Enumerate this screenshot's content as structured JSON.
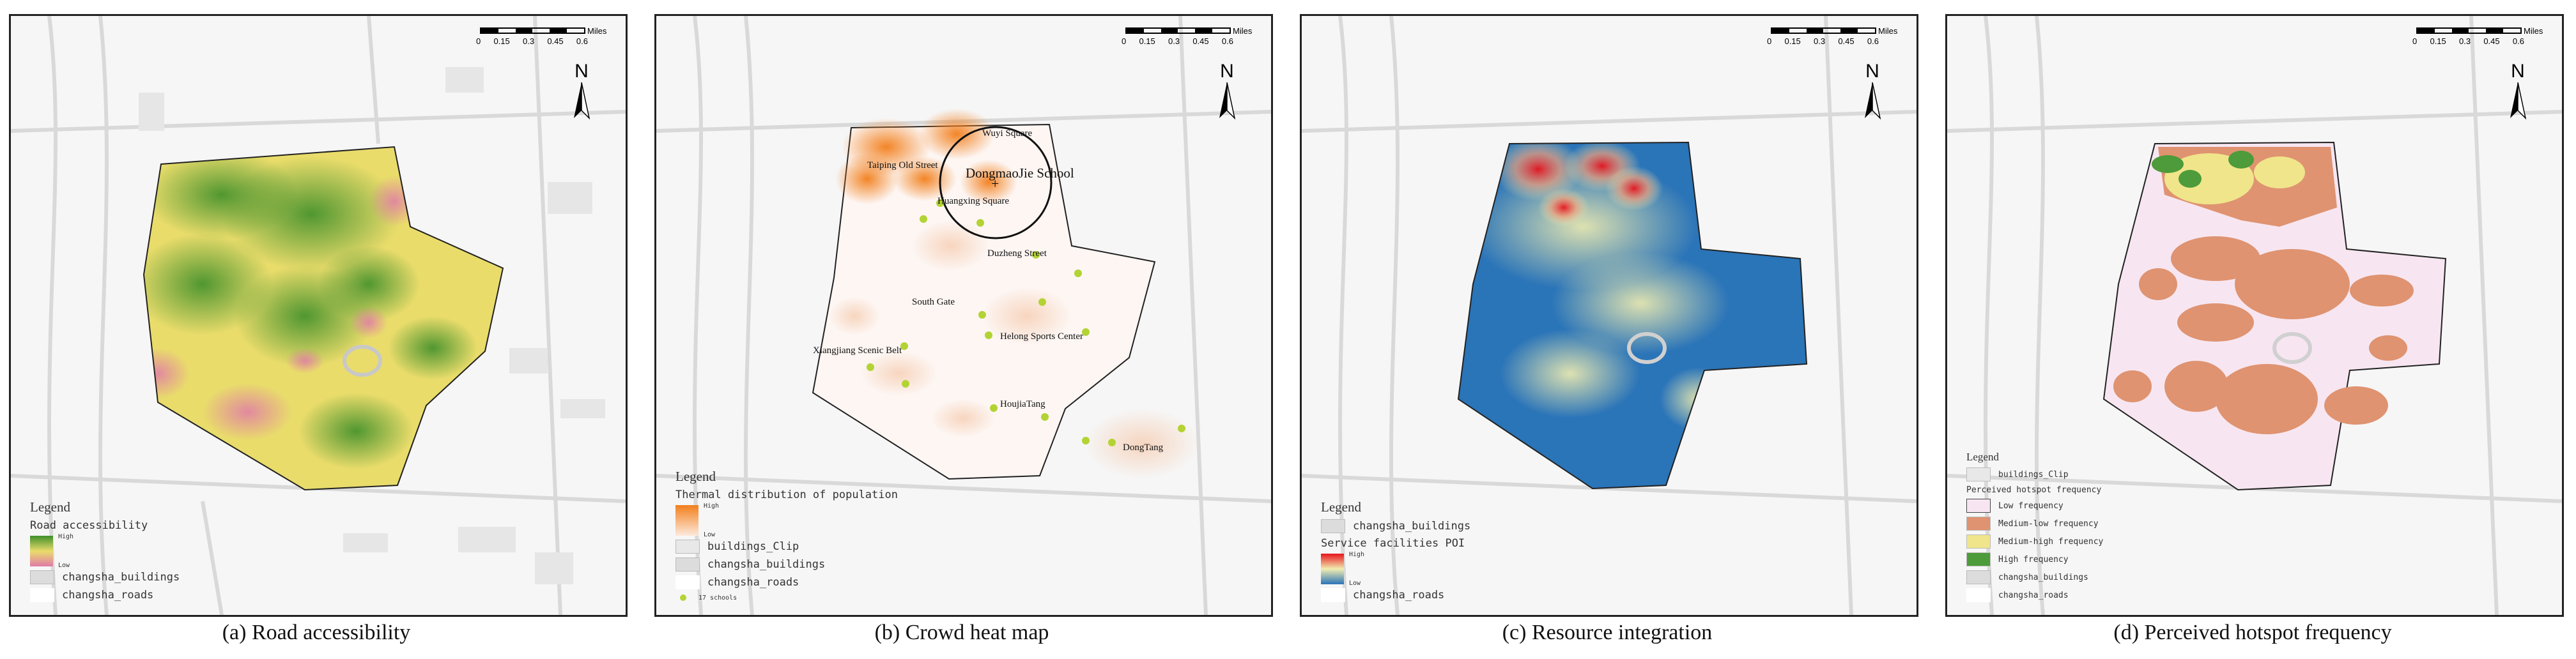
{
  "scale": {
    "unit": "Miles",
    "ticks": [
      "0",
      "0.15",
      "0.3",
      "0.45",
      "0.6"
    ]
  },
  "north": "N",
  "panels": [
    {
      "caption": "(a) Road accessibility",
      "legend": {
        "title": "Legend",
        "subtitle": "Road accessibility",
        "high": "High",
        "low": "Low",
        "buildings": "changsha_buildings",
        "roads": "changsha_roads"
      },
      "colors": {
        "high": "#3f8f2a",
        "mid": "#e9dc6b",
        "low": "#e07aa8"
      }
    },
    {
      "caption": "(b) Crowd heat map",
      "legend": {
        "title": "Legend",
        "subtitle": "Thermal distribution of population",
        "high": "High",
        "low": "Low",
        "clip": "buildings_Clip",
        "buildings": "changsha_buildings",
        "roads": "changsha_roads",
        "schools": "17 schools"
      },
      "labels": {
        "wuyi": "Wuyi Square",
        "taiping": "Taiping Old Street",
        "school": "DongmaoJie School",
        "huangxing": "Huangxing Square",
        "duzheng": "Duzheng Street",
        "southgate": "South Gate",
        "xiangjiang": "Xiangjiang Scenic Belt",
        "helong": "Helong Sports Center",
        "houjia": "HoujiaTang",
        "dongtang": "DongTang"
      },
      "colors": {
        "hot": "#f27f1c",
        "dot": "#b3d334"
      }
    },
    {
      "caption": "(c) Resource integration",
      "legend": {
        "title": "Legend",
        "buildings": "changsha_buildings",
        "subtitle": "Service facilities POI",
        "high": "High",
        "low": "Low",
        "roads": "changsha_roads"
      },
      "colors": {
        "high": "#e8141d",
        "mid": "#f1edb0",
        "low": "#2a74b8"
      }
    },
    {
      "caption": "(d) Perceived hotspot frequency",
      "legend": {
        "title": "Legend",
        "clip": "buildings_Clip",
        "subtitle": "Perceived hotspot frequency",
        "c1": "Low frequency",
        "c2": "Medium-low frequency",
        "c3": "Medium-high frequency",
        "c4": "High frequency",
        "buildings": "changsha_buildings",
        "roads": "changsha_roads"
      },
      "colors": {
        "low": "#f7e6f1",
        "medlow": "#df9371",
        "medhigh": "#f0e58a",
        "high": "#4d9b3a"
      }
    }
  ]
}
